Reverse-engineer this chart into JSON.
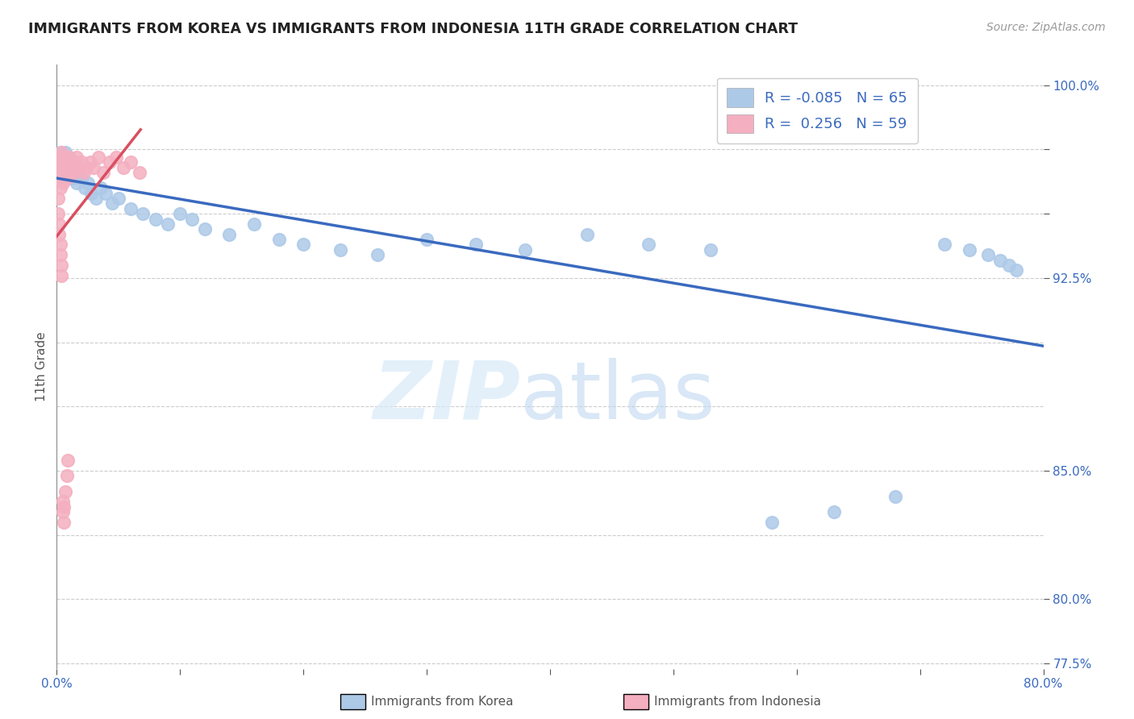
{
  "title": "IMMIGRANTS FROM KOREA VS IMMIGRANTS FROM INDONESIA 11TH GRADE CORRELATION CHART",
  "source_text": "Source: ZipAtlas.com",
  "ylabel": "11th Grade",
  "korea_R": -0.085,
  "korea_N": 65,
  "indonesia_R": 0.256,
  "indonesia_N": 59,
  "korea_color": "#adc9e8",
  "indonesia_color": "#f4afc0",
  "korea_line_color": "#3a6abf",
  "indonesia_line_color": "#d94f60",
  "xlim": [
    0.0,
    0.8
  ],
  "ylim": [
    0.773,
    1.008
  ],
  "background_color": "#ffffff",
  "grid_color": "#cccccc",
  "korea_x": [
    0.001,
    0.002,
    0.002,
    0.003,
    0.003,
    0.003,
    0.004,
    0.004,
    0.004,
    0.005,
    0.005,
    0.006,
    0.006,
    0.006,
    0.007,
    0.007,
    0.007,
    0.008,
    0.008,
    0.009,
    0.009,
    0.01,
    0.011,
    0.012,
    0.013,
    0.014,
    0.016,
    0.018,
    0.02,
    0.023,
    0.025,
    0.028,
    0.032,
    0.036,
    0.04,
    0.045,
    0.05,
    0.06,
    0.07,
    0.08,
    0.09,
    0.1,
    0.11,
    0.12,
    0.14,
    0.16,
    0.18,
    0.2,
    0.23,
    0.26,
    0.3,
    0.34,
    0.38,
    0.43,
    0.48,
    0.53,
    0.58,
    0.63,
    0.68,
    0.72,
    0.74,
    0.755,
    0.765,
    0.772,
    0.778
  ],
  "korea_y": [
    0.966,
    0.972,
    0.968,
    0.974,
    0.97,
    0.966,
    0.972,
    0.968,
    0.964,
    0.97,
    0.966,
    0.972,
    0.968,
    0.964,
    0.974,
    0.97,
    0.966,
    0.972,
    0.968,
    0.97,
    0.966,
    0.968,
    0.964,
    0.966,
    0.968,
    0.964,
    0.962,
    0.966,
    0.964,
    0.96,
    0.962,
    0.958,
    0.956,
    0.96,
    0.958,
    0.954,
    0.956,
    0.952,
    0.95,
    0.948,
    0.946,
    0.95,
    0.948,
    0.944,
    0.942,
    0.946,
    0.94,
    0.938,
    0.936,
    0.934,
    0.94,
    0.938,
    0.936,
    0.942,
    0.938,
    0.936,
    0.83,
    0.834,
    0.84,
    0.938,
    0.936,
    0.934,
    0.932,
    0.93,
    0.928
  ],
  "indonesia_x": [
    0.001,
    0.001,
    0.002,
    0.002,
    0.002,
    0.003,
    0.003,
    0.003,
    0.004,
    0.004,
    0.004,
    0.005,
    0.005,
    0.005,
    0.006,
    0.006,
    0.006,
    0.007,
    0.007,
    0.008,
    0.008,
    0.009,
    0.009,
    0.01,
    0.01,
    0.011,
    0.012,
    0.013,
    0.014,
    0.015,
    0.016,
    0.018,
    0.02,
    0.022,
    0.024,
    0.027,
    0.03,
    0.034,
    0.038,
    0.043,
    0.048,
    0.054,
    0.06,
    0.067,
    0.001,
    0.001,
    0.002,
    0.002,
    0.003,
    0.003,
    0.004,
    0.004,
    0.005,
    0.005,
    0.006,
    0.006,
    0.007,
    0.008,
    0.009
  ],
  "indonesia_y": [
    0.966,
    0.97,
    0.964,
    0.968,
    0.972,
    0.96,
    0.964,
    0.968,
    0.966,
    0.97,
    0.974,
    0.962,
    0.966,
    0.97,
    0.964,
    0.968,
    0.972,
    0.966,
    0.97,
    0.964,
    0.968,
    0.966,
    0.97,
    0.968,
    0.972,
    0.966,
    0.97,
    0.968,
    0.966,
    0.97,
    0.972,
    0.968,
    0.97,
    0.966,
    0.968,
    0.97,
    0.968,
    0.972,
    0.966,
    0.97,
    0.972,
    0.968,
    0.97,
    0.966,
    0.956,
    0.95,
    0.946,
    0.942,
    0.938,
    0.934,
    0.93,
    0.926,
    0.838,
    0.834,
    0.83,
    0.836,
    0.842,
    0.848,
    0.854
  ],
  "ytick_vals": [
    0.8,
    0.85,
    0.925,
    1.0
  ],
  "ytick_lbls": [
    "80.0%",
    "85.0%",
    "92.5%",
    "100.0%"
  ],
  "ytick_vals_extra": [
    0.775,
    0.95,
    0.975
  ],
  "ytick_lbls_extra": [
    "77.5%",
    "",
    ""
  ],
  "xtick_vals": [
    0.0,
    0.1,
    0.2,
    0.3,
    0.4,
    0.5,
    0.6,
    0.7,
    0.8
  ],
  "xtick_lbls": [
    "0.0%",
    "",
    "",
    "",
    "",
    "",
    "",
    "",
    "80.0%"
  ]
}
